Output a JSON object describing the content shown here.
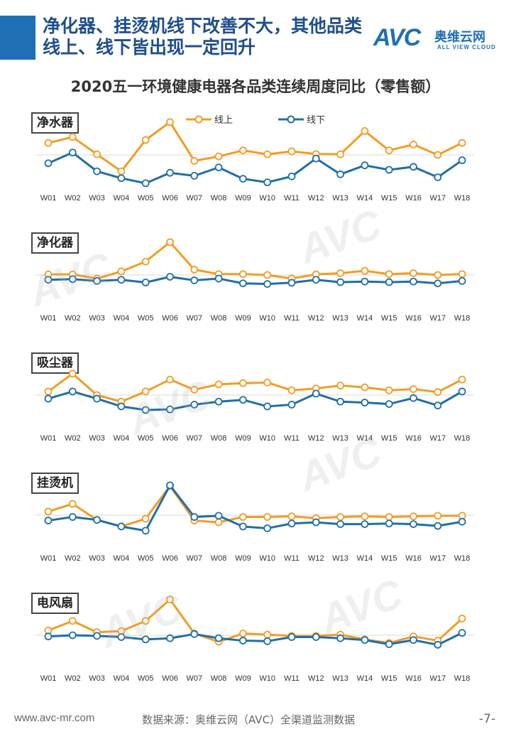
{
  "header": {
    "headline": "净化器、挂烫机线下改善不大，其他品类线上、线下皆出现一定回升",
    "logo_text": "AVC",
    "logo_cn": "奥维云网",
    "logo_en": "ALL VIEW CLOUD"
  },
  "main_title": "2020五一环境健康电器各品类连续周度同比（零售额）",
  "colors": {
    "online": "#f39c24",
    "offline": "#1f6fa8",
    "header_bar": "#1f6fb4",
    "gridline": "#d9d9d9"
  },
  "chart_data": [
    {
      "type": "line",
      "title": "净水器",
      "categories": [
        "W01",
        "W02",
        "W03",
        "W04",
        "W05",
        "W06",
        "W07",
        "W08",
        "W09",
        "W10",
        "W11",
        "W12",
        "W13",
        "W14",
        "W15",
        "W16",
        "W17",
        "W18"
      ],
      "series": [
        {
          "name": "线上",
          "values": [
            0.4,
            0.6,
            0.02,
            -0.55,
            0.5,
            1.1,
            -0.2,
            -0.05,
            0.15,
            0.02,
            0.12,
            0.03,
            0.02,
            0.8,
            0.15,
            0.35,
            0.0,
            0.4
          ]
        },
        {
          "name": "线下",
          "values": [
            -0.28,
            0.08,
            -0.55,
            -0.78,
            -0.95,
            -0.6,
            -0.7,
            -0.42,
            -0.8,
            -0.92,
            -0.72,
            -0.12,
            -0.65,
            -0.35,
            -0.5,
            -0.4,
            -0.75,
            -0.18
          ]
        }
      ]
    },
    {
      "type": "line",
      "title": "净化器",
      "categories": [
        "W01",
        "W02",
        "W03",
        "W04",
        "W05",
        "W06",
        "W07",
        "W08",
        "W09",
        "W10",
        "W11",
        "W12",
        "W13",
        "W14",
        "W15",
        "W16",
        "W17",
        "W18"
      ],
      "series": [
        {
          "name": "线上",
          "values": [
            0.02,
            0.02,
            -0.12,
            0.12,
            0.45,
            1.1,
            0.18,
            0.03,
            0.03,
            0.0,
            -0.12,
            0.02,
            0.06,
            0.14,
            0.03,
            0.06,
            0.0,
            0.03
          ]
        },
        {
          "name": "线下",
          "values": [
            -0.16,
            -0.14,
            -0.2,
            -0.16,
            -0.25,
            -0.06,
            -0.18,
            -0.12,
            -0.28,
            -0.3,
            -0.26,
            -0.16,
            -0.24,
            -0.22,
            -0.24,
            -0.22,
            -0.28,
            -0.2
          ]
        }
      ]
    },
    {
      "type": "line",
      "title": "吸尘器",
      "categories": [
        "W01",
        "W02",
        "W03",
        "W04",
        "W05",
        "W06",
        "W07",
        "W08",
        "W09",
        "W10",
        "W11",
        "W12",
        "W13",
        "W14",
        "W15",
        "W16",
        "W17",
        "W18"
      ],
      "series": [
        {
          "name": "线上",
          "values": [
            0.12,
            0.72,
            0.0,
            -0.22,
            0.12,
            0.52,
            0.18,
            0.36,
            0.4,
            0.42,
            0.16,
            0.22,
            0.32,
            0.26,
            0.16,
            0.2,
            0.1,
            0.52
          ]
        },
        {
          "name": "线下",
          "values": [
            -0.12,
            0.12,
            -0.12,
            -0.38,
            -0.5,
            -0.48,
            -0.32,
            -0.22,
            -0.16,
            -0.38,
            -0.32,
            0.05,
            -0.22,
            -0.25,
            -0.3,
            -0.1,
            -0.35,
            0.12
          ]
        }
      ]
    },
    {
      "type": "line",
      "title": "挂烫机",
      "categories": [
        "W01",
        "W02",
        "W03",
        "W04",
        "W05",
        "W06",
        "W07",
        "W08",
        "W09",
        "W10",
        "W11",
        "W12",
        "W13",
        "W14",
        "W15",
        "W16",
        "W17",
        "W18"
      ],
      "series": [
        {
          "name": "线上",
          "values": [
            0.12,
            0.38,
            -0.16,
            -0.38,
            -0.12,
            0.98,
            -0.18,
            -0.24,
            -0.06,
            -0.06,
            -0.04,
            -0.1,
            -0.06,
            -0.04,
            -0.06,
            -0.04,
            -0.02,
            -0.02
          ]
        },
        {
          "name": "线下",
          "values": [
            -0.18,
            -0.06,
            -0.16,
            -0.38,
            -0.52,
            1.0,
            -0.06,
            -0.02,
            -0.38,
            -0.44,
            -0.28,
            -0.24,
            -0.3,
            -0.3,
            -0.28,
            -0.3,
            -0.36,
            -0.22
          ]
        }
      ]
    },
    {
      "type": "line",
      "title": "电风扇",
      "categories": [
        "W01",
        "W02",
        "W03",
        "W04",
        "W05",
        "W06",
        "W07",
        "W08",
        "W09",
        "W10",
        "W11",
        "W12",
        "W13",
        "W14",
        "W15",
        "W16",
        "W17",
        "W18"
      ],
      "series": [
        {
          "name": "线上",
          "values": [
            0.16,
            0.48,
            0.1,
            0.14,
            0.48,
            1.2,
            0.06,
            -0.22,
            0.06,
            0.02,
            -0.02,
            -0.02,
            0.02,
            -0.14,
            -0.26,
            -0.04,
            -0.18,
            0.56
          ]
        },
        {
          "name": "线下",
          "values": [
            -0.04,
            0.0,
            -0.02,
            -0.06,
            -0.14,
            -0.1,
            0.04,
            -0.1,
            -0.18,
            -0.2,
            -0.06,
            -0.06,
            -0.1,
            -0.16,
            -0.3,
            -0.16,
            -0.32,
            0.08
          ]
        }
      ]
    }
  ],
  "footer": {
    "website": "www.avc-mr.com",
    "source": "数据来源：奥维云网（AVC）全渠道监测数据",
    "page": "-7-"
  }
}
